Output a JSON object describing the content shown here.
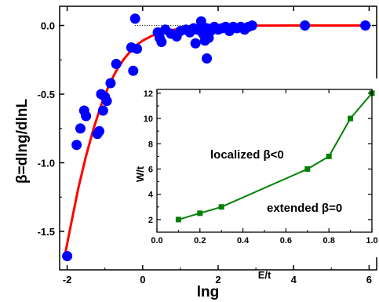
{
  "chart_data": [
    {
      "type": "scatter",
      "xlabel": "lng",
      "ylabel": "β=dlng/dlnL",
      "xlim": [
        -2.2,
        6.2
      ],
      "ylim": [
        -1.78,
        0.14
      ],
      "xticks": [
        -2,
        0,
        2,
        4,
        6
      ],
      "yticks": [
        0.0,
        -0.5,
        -1.0,
        -1.5
      ],
      "xtick_labels": [
        "-2",
        "0",
        "2",
        "4",
        "6"
      ],
      "ytick_labels": [
        "0.0",
        "-0.5",
        "-1.0",
        "-1.5"
      ],
      "reference_line": {
        "y": 0.0,
        "style": "dotted"
      },
      "colors": {
        "points": "#0000ff",
        "fit": "#ff0000"
      },
      "series": [
        {
          "kind": "points",
          "points": [
            [
              -2.0,
              -1.68
            ],
            [
              -1.75,
              -0.87
            ],
            [
              -1.65,
              -0.75
            ],
            [
              -1.55,
              -0.62
            ],
            [
              -1.5,
              -0.66
            ],
            [
              -1.2,
              -0.79
            ],
            [
              -1.15,
              -0.77
            ],
            [
              -1.1,
              -0.5
            ],
            [
              -1.05,
              -0.62
            ],
            [
              -1.0,
              -0.52
            ],
            [
              -0.95,
              -0.55
            ],
            [
              -0.85,
              -0.42
            ],
            [
              -0.7,
              -0.28
            ],
            [
              -0.3,
              -0.16
            ],
            [
              -0.25,
              -0.33
            ],
            [
              -0.2,
              0.05
            ],
            [
              -0.15,
              -0.17
            ],
            [
              0.4,
              -0.05
            ],
            [
              0.45,
              -0.09
            ],
            [
              0.5,
              -0.12
            ],
            [
              0.6,
              -0.03
            ],
            [
              0.75,
              -0.06
            ],
            [
              0.9,
              -0.08
            ],
            [
              1.0,
              -0.04
            ],
            [
              1.15,
              -0.03
            ],
            [
              1.25,
              -0.05
            ],
            [
              1.35,
              -0.02
            ],
            [
              1.4,
              -0.13
            ],
            [
              1.45,
              -0.03
            ],
            [
              1.55,
              0.03
            ],
            [
              1.6,
              -0.06
            ],
            [
              1.65,
              -0.11
            ],
            [
              1.7,
              -0.02
            ],
            [
              1.75,
              -0.09
            ],
            [
              1.8,
              -0.04
            ],
            [
              1.9,
              -0.01
            ],
            [
              2.0,
              -0.03
            ],
            [
              2.1,
              -0.02
            ],
            [
              2.2,
              -0.01
            ],
            [
              2.3,
              -0.04
            ],
            [
              2.4,
              -0.01
            ],
            [
              2.5,
              -0.02
            ],
            [
              2.6,
              -0.01
            ],
            [
              2.7,
              -0.03
            ],
            [
              2.8,
              -0.01
            ],
            [
              2.9,
              0.0
            ],
            [
              4.3,
              0.0
            ],
            [
              5.9,
              0.0
            ],
            [
              1.7,
              -0.24
            ]
          ]
        },
        {
          "kind": "fit-curve",
          "points": [
            [
              -2.05,
              -1.66
            ],
            [
              -1.9,
              -1.45
            ],
            [
              -1.7,
              -1.18
            ],
            [
              -1.5,
              -0.95
            ],
            [
              -1.3,
              -0.75
            ],
            [
              -1.1,
              -0.58
            ],
            [
              -0.9,
              -0.44
            ],
            [
              -0.7,
              -0.33
            ],
            [
              -0.5,
              -0.245
            ],
            [
              -0.3,
              -0.18
            ],
            [
              -0.1,
              -0.13
            ],
            [
              0.0,
              -0.11
            ],
            [
              0.25,
              -0.075
            ],
            [
              0.5,
              -0.05
            ],
            [
              0.75,
              -0.035
            ],
            [
              1.0,
              -0.024
            ],
            [
              1.5,
              -0.011
            ],
            [
              2.0,
              -0.005
            ],
            [
              2.5,
              -0.002
            ],
            [
              3.0,
              -0.0008
            ],
            [
              4.0,
              0.0
            ],
            [
              5.0,
              0.0
            ],
            [
              6.0,
              0.0
            ]
          ]
        }
      ]
    },
    {
      "type": "line",
      "xlabel": "E/t",
      "ylabel": "W/t",
      "xlim": [
        0.0,
        1.0
      ],
      "ylim": [
        1.0,
        12.3
      ],
      "xticks": [
        0.0,
        0.2,
        0.4,
        0.6,
        0.8,
        1.0
      ],
      "yticks": [
        2,
        4,
        6,
        8,
        10,
        12
      ],
      "xtick_labels": [
        "0.0",
        "0.2",
        "0.4",
        "0.6",
        "0.8",
        "1.0"
      ],
      "ytick_labels": [
        "2",
        "4",
        "6",
        "8",
        "10",
        "12"
      ],
      "color": "#008000",
      "x": [
        0.1,
        0.2,
        0.3,
        0.7,
        0.8,
        0.9,
        1.0
      ],
      "y": [
        2,
        2.5,
        3,
        6,
        7,
        10,
        12
      ],
      "annotations": [
        "localized β<0",
        "extended β=0"
      ]
    }
  ]
}
